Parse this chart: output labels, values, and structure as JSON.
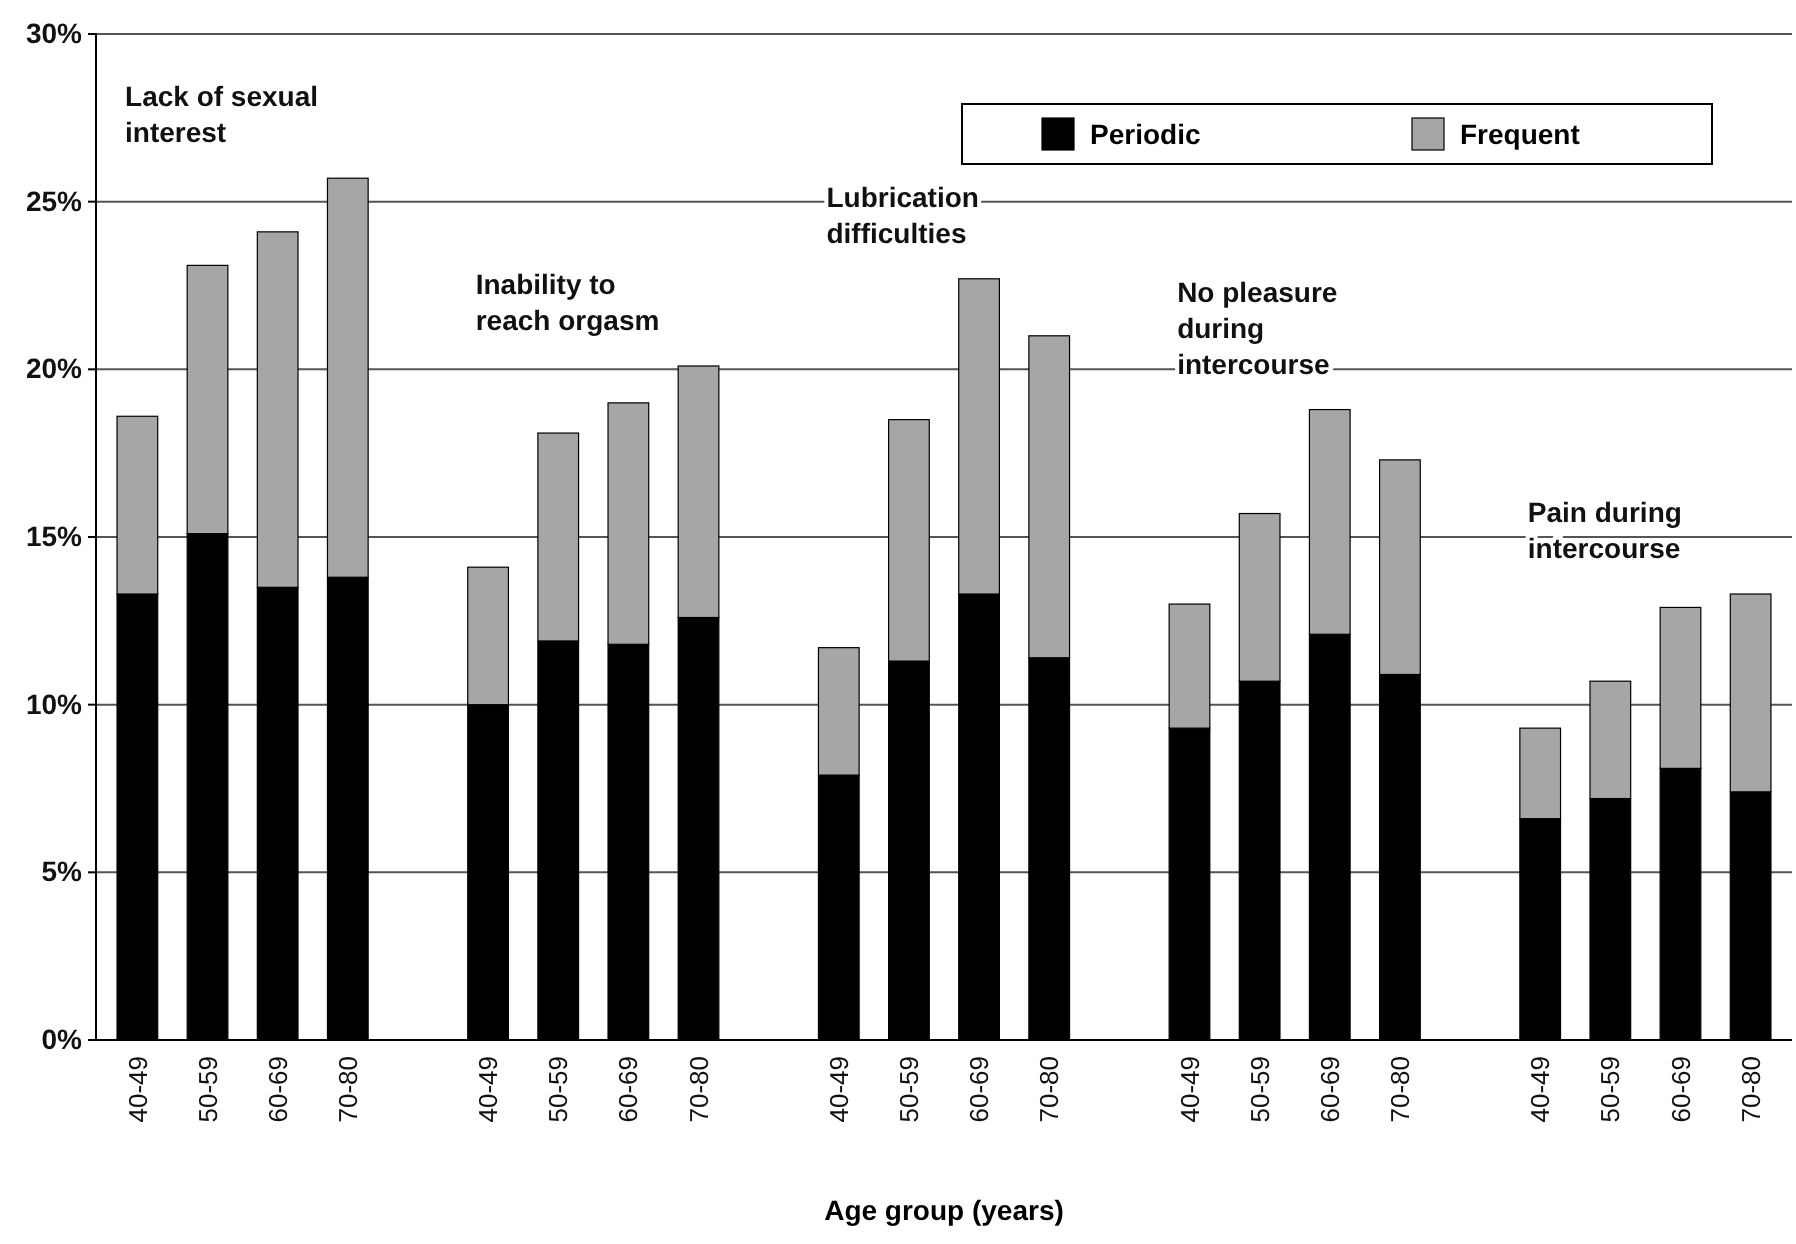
{
  "chart_data": {
    "type": "bar",
    "stacked": true,
    "xlabel": "Age group (years)",
    "categories": [
      "40-49",
      "50-59",
      "60-69",
      "70-80",
      null,
      "40-49",
      "50-59",
      "60-69",
      "70-80",
      null,
      "40-49",
      "50-59",
      "60-69",
      "70-80",
      null,
      "40-49",
      "50-59",
      "60-69",
      "70-80",
      null,
      "40-49",
      "50-59",
      "60-69",
      "70-80"
    ],
    "series": [
      {
        "name": "Periodic",
        "color": "#000000",
        "values": [
          13.3,
          15.1,
          13.5,
          13.8,
          null,
          10.0,
          11.9,
          11.8,
          12.6,
          null,
          7.9,
          11.3,
          13.3,
          11.4,
          null,
          9.3,
          10.7,
          12.1,
          10.9,
          null,
          6.6,
          7.2,
          8.1,
          7.4
        ]
      },
      {
        "name": "Frequent",
        "color": "#a6a6a6",
        "values": [
          5.3,
          8.0,
          10.6,
          11.9,
          null,
          4.1,
          6.2,
          7.2,
          7.5,
          null,
          3.8,
          7.2,
          9.4,
          9.6,
          null,
          3.7,
          5.0,
          6.7,
          6.4,
          null,
          2.7,
          3.5,
          4.8,
          5.9
        ]
      }
    ],
    "annotations": [
      "Lack of sexual interest",
      "Inability to reach orgasm",
      "Lubrication difficulties",
      "No pleasure during intercourse",
      "Pain during intercourse"
    ],
    "ylim": [
      0,
      30
    ],
    "yticks": [
      {
        "value": 0,
        "label": "0%"
      },
      {
        "value": 5,
        "label": "5%"
      },
      {
        "value": 10,
        "label": "10%"
      },
      {
        "value": 15,
        "label": "15%"
      },
      {
        "value": 20,
        "label": "20%"
      },
      {
        "value": 25,
        "label": "25%"
      },
      {
        "value": 30,
        "label": "30%"
      }
    ],
    "grid": "y",
    "legend": "top right"
  }
}
